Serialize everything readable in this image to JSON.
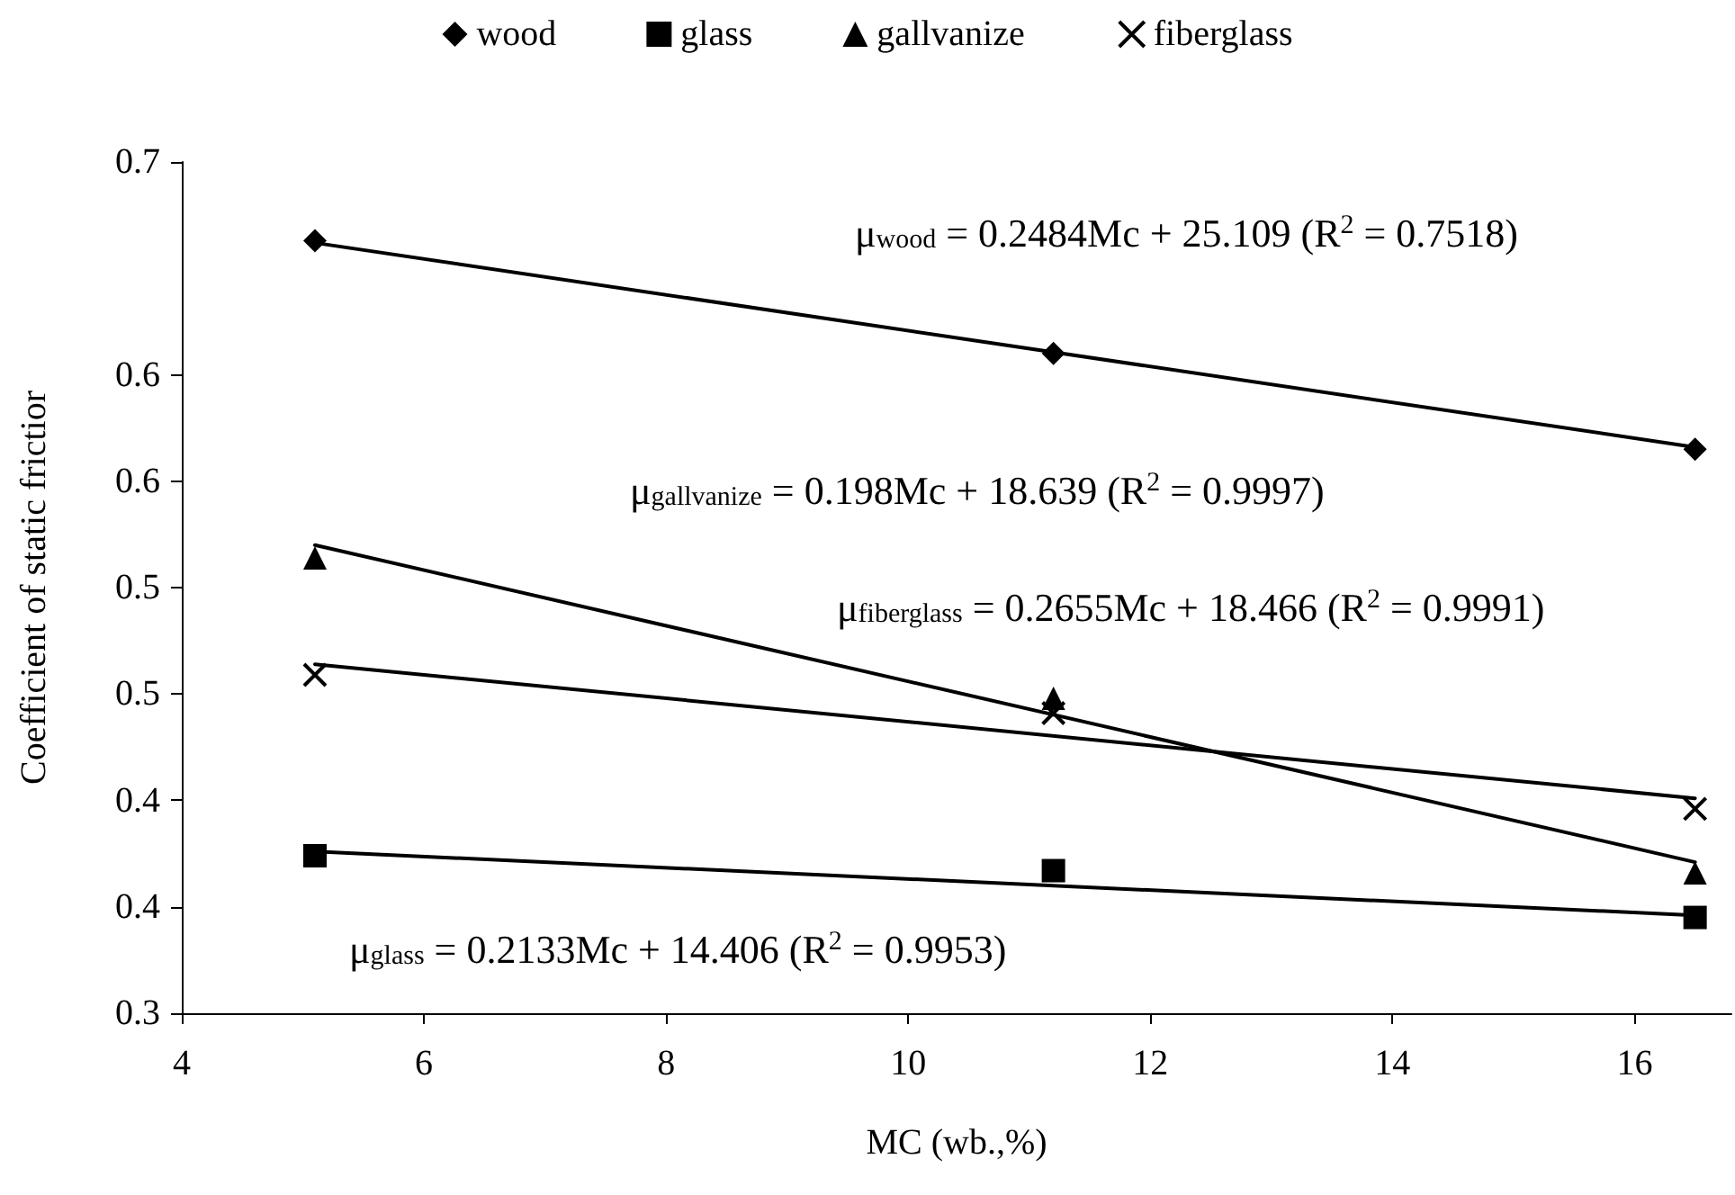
{
  "chart_data": {
    "type": "scatter",
    "xlabel": "MC (wb.,%)",
    "ylabel": "Coefficient of static frictior",
    "xlim": [
      4,
      16.8
    ],
    "xticks": [
      4,
      6,
      8,
      10,
      12,
      14,
      16
    ],
    "ylim": [
      0.3,
      0.7
    ],
    "yticks": [
      0.3,
      {
        "value": 0.35,
        "label": "0.4"
      },
      0.4,
      {
        "value": 0.45,
        "label": "0.5"
      },
      0.5,
      {
        "value": 0.55,
        "label": "0.6"
      },
      0.6,
      0.7
    ],
    "grid": false,
    "legend": "top",
    "series": [
      {
        "name": "wood",
        "type": "scatter",
        "marker": "diamond",
        "color": "#000000",
        "x": [
          5.1,
          11.2,
          16.5
        ],
        "values": [
          0.663,
          0.61,
          0.565
        ]
      },
      {
        "name": "glass",
        "type": "scatter",
        "marker": "square",
        "color": "#000000",
        "x": [
          5.1,
          11.2,
          16.5
        ],
        "values": [
          0.374,
          0.367,
          0.345
        ]
      },
      {
        "name": "gallvanize",
        "type": "scatter",
        "marker": "triangle",
        "color": "#000000",
        "x": [
          5.1,
          11.2,
          16.5
        ],
        "values": [
          0.514,
          0.448,
          0.366
        ]
      },
      {
        "name": "fiberglass",
        "type": "scatter",
        "marker": "cross",
        "color": "#000000",
        "x": [
          5.1,
          11.2,
          16.5
        ],
        "values": [
          0.459,
          0.441,
          0.396
        ]
      },
      {
        "type": "line",
        "marker": "none",
        "line_style": "solid",
        "color": "#000000",
        "x": [
          5.1,
          16.5
        ],
        "values": [
          0.662,
          0.566
        ]
      },
      {
        "type": "line",
        "marker": "none",
        "line_style": "solid",
        "color": "#000000",
        "x": [
          5.1,
          16.5
        ],
        "values": [
          0.376,
          0.346
        ]
      },
      {
        "type": "line",
        "marker": "none",
        "line_style": "solid",
        "color": "#000000",
        "x": [
          5.1,
          16.5
        ],
        "values": [
          0.52,
          0.371
        ]
      },
      {
        "type": "line",
        "marker": "none",
        "line_style": "solid",
        "color": "#000000",
        "x": [
          5.1,
          16.5
        ],
        "values": [
          0.464,
          0.401
        ]
      }
    ],
    "annotations": [
      "μ$_{wood}$ = 0.2484Mc + 25.109 (R$^{2}$ = 0.7518)",
      "μ$_{gallvanize}$ = 0.198Mc + 18.639 (R$^{2}$ = 0.9997)",
      "μ$_{fiberglass}$ = 0.2655Mc + 18.466 (R$^{2}$ = 0.9991)",
      "μ$_{glass}$ = 0.2133Mc + 14.406 (R$^{2}$ = 0.9953)"
    ]
  }
}
